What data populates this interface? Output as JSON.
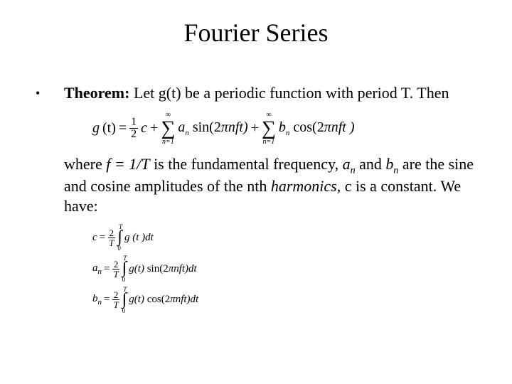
{
  "title": "Fourier Series",
  "bullet_char": "•",
  "theorem_label": "Theorem:",
  "theorem_text1": " Let g(t) be a periodic function with period T. Then",
  "where_pre": "where ",
  "f_eq": "f = 1/T",
  "where_mid1": " is the fundamental frequency,  ",
  "an_label": "a",
  "an_sub": "n",
  "where_and": " and ",
  "bn_label": "b",
  "bn_sub": "n",
  "where_mid2": " are the sine and cosine amplitudes of the nth ",
  "harmonics": "harmonics,",
  "where_tail": " c is a constant.  We have:",
  "formula_main": {
    "lhs": "g",
    "lhs_arg": "(t)",
    "eq": "=",
    "half_num": "1",
    "half_den": "2",
    "c": "c",
    "plus1": "+",
    "sigma1_top": "∞",
    "sigma1_bot": "n=1",
    "term1_a": "a",
    "term1_sub": "n",
    "term1_fn": " sin(2",
    "pi": "π",
    "term1_tail": "nft)",
    "plus2": "+",
    "sigma2_top": "∞",
    "sigma2_bot": "n=1",
    "term2_b": "b",
    "term2_sub": "n",
    "term2_fn": " cos(2",
    "term2_tail": "nft )"
  },
  "int_c": {
    "lhs": "c",
    "eq": " =",
    "frac_num": "2",
    "frac_den": "T",
    "int_top": "T",
    "int_bot": "0",
    "body": "g (t )dt"
  },
  "int_a": {
    "lhs": "a",
    "lhs_sub": "n",
    "eq": "=",
    "frac_num": "2",
    "frac_den": "T",
    "int_top": "T",
    "int_bot": "0",
    "body1": "g(t)",
    "body2": " sin(2",
    "body3": "nft)dt"
  },
  "int_b": {
    "lhs": "b",
    "lhs_sub": "n",
    "eq": "=",
    "frac_num": "2",
    "frac_den": "T",
    "int_top": "T",
    "int_bot": "0",
    "body1": "g(t)",
    "body2": " cos(2",
    "body3": "nft)dt"
  },
  "colors": {
    "text": "#000000",
    "background": "#ffffff"
  },
  "fonts": {
    "title_size_pt": 36,
    "body_size_pt": 22,
    "formula_main_pt": 20,
    "formula_small_pt": 15,
    "family": "Times New Roman"
  }
}
